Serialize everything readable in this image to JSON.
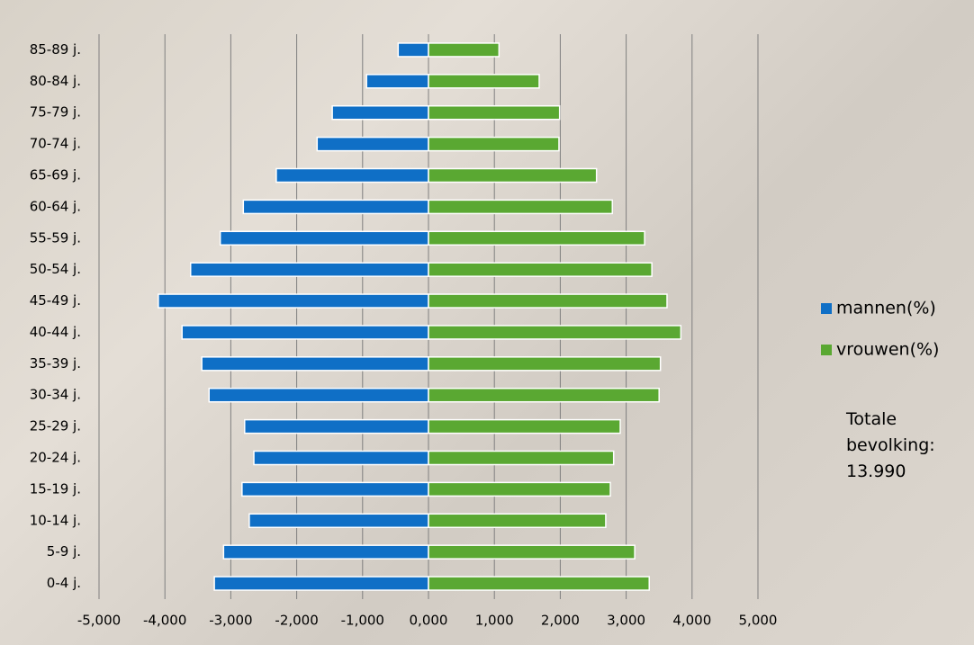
{
  "chart_data": {
    "type": "bar",
    "orientation": "horizontal",
    "stacked": "diverging",
    "categories": [
      "0-4 j.",
      "5-9 j.",
      "10-14 j.",
      "15-19 j.",
      "20-24 j.",
      "25-29 j.",
      "30-34 j.",
      "35-39 j.",
      "40-44 j.",
      "45-49 j.",
      "50-54 j.",
      "55-59 j.",
      "60-64 j.",
      "65-69 j.",
      "70-74 j.",
      "75-79 j.",
      "80-84 j.",
      "85-89 j."
    ],
    "series": [
      {
        "name": "mannen(%)",
        "color": "#0f6fc6",
        "values": [
          -3.25,
          -3.11,
          -2.72,
          -2.83,
          -2.65,
          -2.79,
          -3.33,
          -3.44,
          -3.74,
          -4.1,
          -3.61,
          -3.16,
          -2.81,
          -2.31,
          -1.69,
          -1.46,
          -0.94,
          -0.46
        ]
      },
      {
        "name": "vrouwen(%)",
        "color": "#5aa832",
        "values": [
          3.35,
          3.13,
          2.69,
          2.76,
          2.81,
          2.91,
          3.5,
          3.52,
          3.83,
          3.62,
          3.39,
          3.28,
          2.79,
          2.55,
          1.98,
          1.99,
          1.68,
          1.07
        ]
      }
    ],
    "xlim": [
      -5,
      5
    ],
    "xticks": [
      {
        "value": -5,
        "label": "-5,000"
      },
      {
        "value": -4,
        "label": "-4,000"
      },
      {
        "value": -3,
        "label": "-3,000"
      },
      {
        "value": -2,
        "label": "-2,000"
      },
      {
        "value": -1,
        "label": "-1,000"
      },
      {
        "value": 0,
        "label": "0,000"
      },
      {
        "value": 1,
        "label": "1,000"
      },
      {
        "value": 2,
        "label": "2,000"
      },
      {
        "value": 3,
        "label": "3,000"
      },
      {
        "value": 4,
        "label": "4,000"
      },
      {
        "value": 5,
        "label": "5,000"
      }
    ],
    "grid": true,
    "legend": "right",
    "annotation": "Totale bevolking: 13.990"
  }
}
